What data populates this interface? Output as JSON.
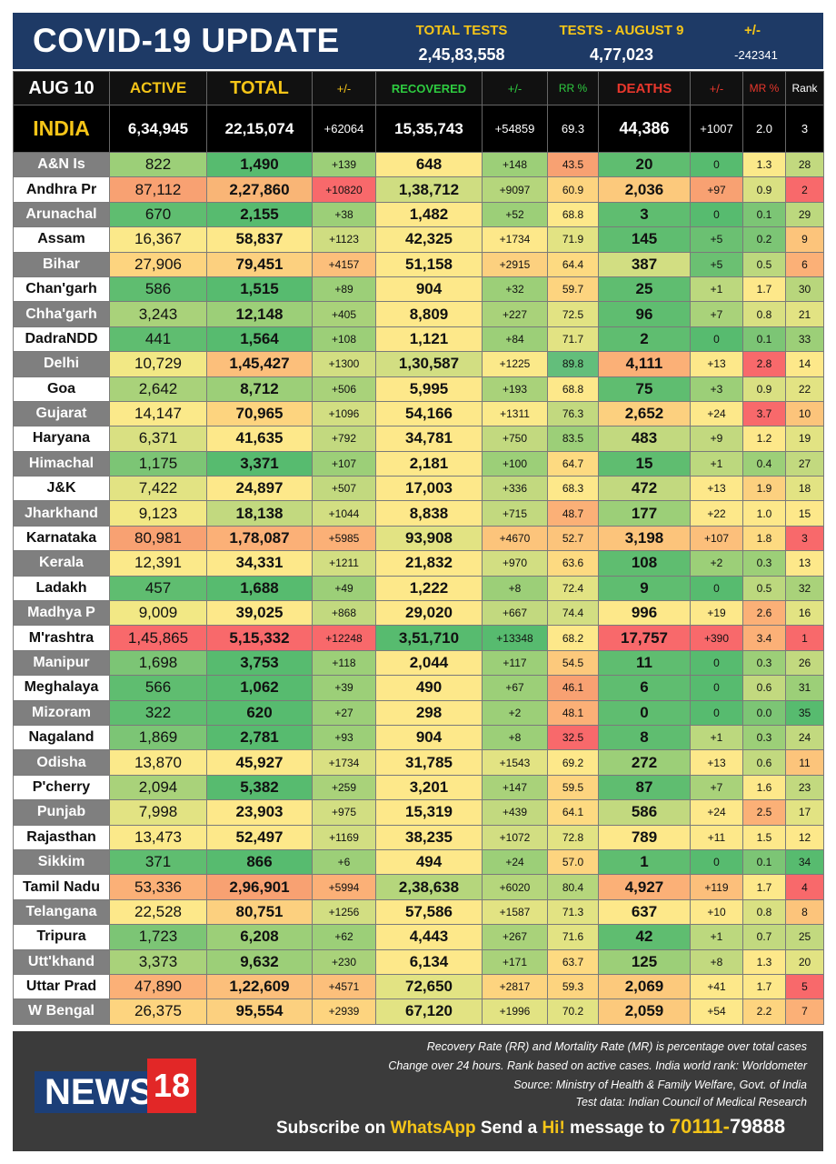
{
  "header": {
    "title": "COVID-19 UPDATE",
    "total_tests_label": "TOTAL TESTS",
    "total_tests_value": "2,45,83,558",
    "tests_day_label": "TESTS - AUGUST 9",
    "tests_day_value": "4,77,023",
    "change_label": "+/-",
    "change_value": "-242341"
  },
  "columns": {
    "date": "AUG 10",
    "active": "ACTIVE",
    "total": "TOTAL",
    "total_change": "+/-",
    "recovered": "RECOVERED",
    "recovered_change": "+/-",
    "rr": "RR %",
    "deaths": "DEATHS",
    "deaths_change": "+/-",
    "mr": "MR %",
    "rank": "Rank"
  },
  "india": {
    "name": "INDIA",
    "active": "6,34,945",
    "total": "22,15,074",
    "total_change": "+62064",
    "recovered": "15,35,743",
    "recovered_change": "+54859",
    "rr": "69.3",
    "deaths": "44,386",
    "deaths_change": "+1007",
    "mr": "2.0",
    "rank": "3"
  },
  "rows": [
    {
      "state": "A&N Is",
      "active": "822",
      "total": "1,490",
      "tc": "+139",
      "rec": "648",
      "rc": "+148",
      "rr": "43.5",
      "deaths": "20",
      "dc": "0",
      "mr": "1.3",
      "rank": "28",
      "bg": [
        "#9ccf78",
        "#57bb6f",
        "#9ccf78",
        "#fde88a",
        "#9ccf78",
        "#f8a172",
        "#5fbd70",
        "#57bb6f",
        "#fbe98a",
        "#c2d97f"
      ]
    },
    {
      "state": "Andhra Pr",
      "active": "87,112",
      "total": "2,27,860",
      "tc": "+10820",
      "rec": "1,38,712",
      "rc": "+9097",
      "rr": "60.9",
      "deaths": "2,036",
      "dc": "+97",
      "mr": "0.9",
      "rank": "2",
      "bg": [
        "#f8a172",
        "#f9b576",
        "#f8696b",
        "#cfdd81",
        "#b5d67c",
        "#fdd47f",
        "#fcc97c",
        "#f8a172",
        "#d9e082",
        "#f8696b"
      ]
    },
    {
      "state": "Arunachal",
      "active": "670",
      "total": "2,155",
      "tc": "+38",
      "rec": "1,482",
      "rc": "+52",
      "rr": "68.8",
      "deaths": "3",
      "dc": "0",
      "mr": "0.1",
      "rank": "29",
      "bg": [
        "#5fbd70",
        "#57bb6f",
        "#9ccf78",
        "#fde88a",
        "#9ccf78",
        "#fde88a",
        "#5fbd70",
        "#57bb6f",
        "#7cc575",
        "#bcd87e"
      ]
    },
    {
      "state": "Assam",
      "active": "16,367",
      "total": "58,837",
      "tc": "+1123",
      "rec": "42,325",
      "rc": "+1734",
      "rr": "71.9",
      "deaths": "145",
      "dc": "+5",
      "mr": "0.2",
      "rank": "9",
      "bg": [
        "#fbe98a",
        "#fde88a",
        "#cfdd81",
        "#fbe98a",
        "#fde88a",
        "#e2e383",
        "#5fbd70",
        "#6bc072",
        "#7cc575",
        "#fcc47b"
      ]
    },
    {
      "state": "Bihar",
      "active": "27,906",
      "total": "79,451",
      "tc": "+4157",
      "rec": "51,158",
      "rc": "+2915",
      "rr": "64.4",
      "deaths": "387",
      "dc": "+5",
      "mr": "0.5",
      "rank": "6",
      "bg": [
        "#fdd47f",
        "#fcd07f",
        "#fcbf7b",
        "#fde88a",
        "#fcd07f",
        "#fdda81",
        "#d2de82",
        "#6bc072",
        "#bcd87e",
        "#fbb077"
      ]
    },
    {
      "state": "Chan'garh",
      "active": "586",
      "total": "1,515",
      "tc": "+89",
      "rec": "904",
      "rc": "+32",
      "rr": "59.7",
      "deaths": "25",
      "dc": "+1",
      "mr": "1.7",
      "rank": "30",
      "bg": [
        "#5fbd70",
        "#57bb6f",
        "#9ccf78",
        "#fde88a",
        "#9ccf78",
        "#fdd47f",
        "#5fbd70",
        "#bcd87e",
        "#fde88a",
        "#b8d67c"
      ]
    },
    {
      "state": "Chha'garh",
      "active": "3,243",
      "total": "12,148",
      "tc": "+405",
      "rec": "8,809",
      "rc": "+227",
      "rr": "72.5",
      "deaths": "96",
      "dc": "+7",
      "mr": "0.8",
      "rank": "21",
      "bg": [
        "#a9d27a",
        "#9ccf78",
        "#a9d27a",
        "#fde88a",
        "#a9d27a",
        "#e2e383",
        "#5fbd70",
        "#a9d27a",
        "#d9e082",
        "#e2e383"
      ]
    },
    {
      "state": "DadraNDD",
      "active": "441",
      "total": "1,564",
      "tc": "+108",
      "rec": "1,121",
      "rc": "+84",
      "rr": "71.7",
      "deaths": "2",
      "dc": "0",
      "mr": "0.1",
      "rank": "33",
      "bg": [
        "#5fbd70",
        "#57bb6f",
        "#9ccf78",
        "#fde88a",
        "#9ccf78",
        "#e2e383",
        "#5fbd70",
        "#57bb6f",
        "#7cc575",
        "#9ccf78"
      ]
    },
    {
      "state": "Delhi",
      "active": "10,729",
      "total": "1,45,427",
      "tc": "+1300",
      "rec": "1,30,587",
      "rc": "+1225",
      "rr": "89.8",
      "deaths": "4,111",
      "dc": "+13",
      "mr": "2.8",
      "rank": "14",
      "bg": [
        "#f2e885",
        "#fcbf7b",
        "#d2de82",
        "#d2de82",
        "#fbe98a",
        "#63be7b",
        "#fbb077",
        "#fde88a",
        "#f8696b",
        "#fde88a"
      ]
    },
    {
      "state": "Goa",
      "active": "2,642",
      "total": "8,712",
      "tc": "+506",
      "rec": "5,995",
      "rc": "+193",
      "rr": "68.8",
      "deaths": "75",
      "dc": "+3",
      "mr": "0.9",
      "rank": "22",
      "bg": [
        "#a9d27a",
        "#9ccf78",
        "#a9d27a",
        "#fde88a",
        "#a9d27a",
        "#fde88a",
        "#5fbd70",
        "#9ccf78",
        "#d9e082",
        "#e2e383"
      ]
    },
    {
      "state": "Gujarat",
      "active": "14,147",
      "total": "70,965",
      "tc": "+1096",
      "rec": "54,166",
      "rc": "+1311",
      "rr": "76.3",
      "deaths": "2,652",
      "dc": "+24",
      "mr": "3.7",
      "rank": "10",
      "bg": [
        "#fbe98a",
        "#fdd47f",
        "#d2de82",
        "#fde88a",
        "#fbe98a",
        "#c2d97f",
        "#fcd07f",
        "#fde88a",
        "#f8696b",
        "#fcc47b"
      ]
    },
    {
      "state": "Haryana",
      "active": "6,371",
      "total": "41,635",
      "tc": "+792",
      "rec": "34,781",
      "rc": "+750",
      "rr": "83.5",
      "deaths": "483",
      "dc": "+9",
      "mr": "1.2",
      "rank": "19",
      "bg": [
        "#d9e082",
        "#fde88a",
        "#c2d97f",
        "#fde88a",
        "#c2d97f",
        "#9ccf78",
        "#c2d97f",
        "#c2d97f",
        "#fde88a",
        "#e2e383"
      ]
    },
    {
      "state": "Himachal",
      "active": "1,175",
      "total": "3,371",
      "tc": "+107",
      "rec": "2,181",
      "rc": "+100",
      "rr": "64.7",
      "deaths": "15",
      "dc": "+1",
      "mr": "0.4",
      "rank": "27",
      "bg": [
        "#7cc575",
        "#57bb6f",
        "#9ccf78",
        "#fde88a",
        "#9ccf78",
        "#fdda81",
        "#5fbd70",
        "#bcd87e",
        "#9ccf78",
        "#c2d97f"
      ]
    },
    {
      "state": "J&K",
      "active": "7,422",
      "total": "24,897",
      "tc": "+507",
      "rec": "17,003",
      "rc": "+336",
      "rr": "68.3",
      "deaths": "472",
      "dc": "+13",
      "mr": "1.9",
      "rank": "18",
      "bg": [
        "#e2e383",
        "#fde88a",
        "#c2d97f",
        "#fde88a",
        "#c2d97f",
        "#fde88a",
        "#c2d97f",
        "#fde88a",
        "#fcd07f",
        "#e2e383"
      ]
    },
    {
      "state": "Jharkhand",
      "active": "9,123",
      "total": "18,138",
      "tc": "+1044",
      "rec": "8,838",
      "rc": "+715",
      "rr": "48.7",
      "deaths": "177",
      "dc": "+22",
      "mr": "1.0",
      "rank": "15",
      "bg": [
        "#f2e885",
        "#c2d97f",
        "#d2de82",
        "#fde88a",
        "#c2d97f",
        "#fbb077",
        "#9ccf78",
        "#fde88a",
        "#fde88a",
        "#fde88a"
      ]
    },
    {
      "state": "Karnataka",
      "active": "80,981",
      "total": "1,78,087",
      "tc": "+5985",
      "rec": "93,908",
      "rc": "+4670",
      "rr": "52.7",
      "deaths": "3,198",
      "dc": "+107",
      "mr": "1.8",
      "rank": "3",
      "bg": [
        "#f8a172",
        "#fbb077",
        "#fbb077",
        "#e2e383",
        "#fcc47b",
        "#fcc47b",
        "#fcc47b",
        "#fcbf7b",
        "#fdda81",
        "#f8696b"
      ]
    },
    {
      "state": "Kerala",
      "active": "12,391",
      "total": "34,331",
      "tc": "+1211",
      "rec": "21,832",
      "rc": "+970",
      "rr": "63.6",
      "deaths": "108",
      "dc": "+2",
      "mr": "0.3",
      "rank": "13",
      "bg": [
        "#fbe98a",
        "#fde88a",
        "#d2de82",
        "#fde88a",
        "#d2de82",
        "#fdda81",
        "#5fbd70",
        "#9ccf78",
        "#9ccf78",
        "#fde88a"
      ]
    },
    {
      "state": "Ladakh",
      "active": "457",
      "total": "1,688",
      "tc": "+49",
      "rec": "1,222",
      "rc": "+8",
      "rr": "72.4",
      "deaths": "9",
      "dc": "0",
      "mr": "0.5",
      "rank": "32",
      "bg": [
        "#5fbd70",
        "#57bb6f",
        "#9ccf78",
        "#fde88a",
        "#9ccf78",
        "#e2e383",
        "#5fbd70",
        "#57bb6f",
        "#bcd87e",
        "#a9d27a"
      ]
    },
    {
      "state": "Madhya P",
      "active": "9,009",
      "total": "39,025",
      "tc": "+868",
      "rec": "29,020",
      "rc": "+667",
      "rr": "74.4",
      "deaths": "996",
      "dc": "+19",
      "mr": "2.6",
      "rank": "16",
      "bg": [
        "#f2e885",
        "#fde88a",
        "#c2d97f",
        "#fde88a",
        "#c2d97f",
        "#d2de82",
        "#fde88a",
        "#fde88a",
        "#fbb077",
        "#e2e383"
      ]
    },
    {
      "state": "M'rashtra",
      "active": "1,45,865",
      "total": "5,15,332",
      "tc": "+12248",
      "rec": "3,51,710",
      "rc": "+13348",
      "rr": "68.2",
      "deaths": "17,757",
      "dc": "+390",
      "mr": "3.4",
      "rank": "1",
      "bg": [
        "#f8696b",
        "#f8696b",
        "#f8696b",
        "#57bb6f",
        "#57bb6f",
        "#fde88a",
        "#f8696b",
        "#f8696b",
        "#fbb077",
        "#f8696b"
      ]
    },
    {
      "state": "Manipur",
      "active": "1,698",
      "total": "3,753",
      "tc": "+118",
      "rec": "2,044",
      "rc": "+117",
      "rr": "54.5",
      "deaths": "11",
      "dc": "0",
      "mr": "0.3",
      "rank": "26",
      "bg": [
        "#7cc575",
        "#57bb6f",
        "#9ccf78",
        "#fde88a",
        "#9ccf78",
        "#fcc97c",
        "#5fbd70",
        "#57bb6f",
        "#9ccf78",
        "#c2d97f"
      ]
    },
    {
      "state": "Meghalaya",
      "active": "566",
      "total": "1,062",
      "tc": "+39",
      "rec": "490",
      "rc": "+67",
      "rr": "46.1",
      "deaths": "6",
      "dc": "0",
      "mr": "0.6",
      "rank": "31",
      "bg": [
        "#5fbd70",
        "#57bb6f",
        "#9ccf78",
        "#fde88a",
        "#9ccf78",
        "#f8a172",
        "#5fbd70",
        "#57bb6f",
        "#c2d97f",
        "#9ccf78"
      ]
    },
    {
      "state": "Mizoram",
      "active": "322",
      "total": "620",
      "tc": "+27",
      "rec": "298",
      "rc": "+2",
      "rr": "48.1",
      "deaths": "0",
      "dc": "0",
      "mr": "0.0",
      "rank": "35",
      "bg": [
        "#5fbd70",
        "#57bb6f",
        "#9ccf78",
        "#fde88a",
        "#9ccf78",
        "#fbb077",
        "#5fbd70",
        "#57bb6f",
        "#7cc575",
        "#57bb6f"
      ]
    },
    {
      "state": "Nagaland",
      "active": "1,869",
      "total": "2,781",
      "tc": "+93",
      "rec": "904",
      "rc": "+8",
      "rr": "32.5",
      "deaths": "8",
      "dc": "+1",
      "mr": "0.3",
      "rank": "24",
      "bg": [
        "#7cc575",
        "#57bb6f",
        "#9ccf78",
        "#fde88a",
        "#9ccf78",
        "#f8696b",
        "#5fbd70",
        "#bcd87e",
        "#9ccf78",
        "#c2d97f"
      ]
    },
    {
      "state": "Odisha",
      "active": "13,870",
      "total": "45,927",
      "tc": "+1734",
      "rec": "31,785",
      "rc": "+1543",
      "rr": "69.2",
      "deaths": "272",
      "dc": "+13",
      "mr": "0.6",
      "rank": "11",
      "bg": [
        "#fbe98a",
        "#fde88a",
        "#d9e082",
        "#fde88a",
        "#e2e383",
        "#fde88a",
        "#9ccf78",
        "#fde88a",
        "#c2d97f",
        "#fcc47b"
      ]
    },
    {
      "state": "P'cherry",
      "active": "2,094",
      "total": "5,382",
      "tc": "+259",
      "rec": "3,201",
      "rc": "+147",
      "rr": "59.5",
      "deaths": "87",
      "dc": "+7",
      "mr": "1.6",
      "rank": "23",
      "bg": [
        "#a9d27a",
        "#57bb6f",
        "#a9d27a",
        "#fde88a",
        "#a9d27a",
        "#fdd47f",
        "#5fbd70",
        "#a9d27a",
        "#fde88a",
        "#c2d97f"
      ]
    },
    {
      "state": "Punjab",
      "active": "7,998",
      "total": "23,903",
      "tc": "+975",
      "rec": "15,319",
      "rc": "+439",
      "rr": "64.1",
      "deaths": "586",
      "dc": "+24",
      "mr": "2.5",
      "rank": "17",
      "bg": [
        "#e2e383",
        "#fde88a",
        "#d2de82",
        "#fde88a",
        "#c2d97f",
        "#fdda81",
        "#c2d97f",
        "#fde88a",
        "#fbb077",
        "#e2e383"
      ]
    },
    {
      "state": "Rajasthan",
      "active": "13,473",
      "total": "52,497",
      "tc": "+1169",
      "rec": "38,235",
      "rc": "+1072",
      "rr": "72.8",
      "deaths": "789",
      "dc": "+11",
      "mr": "1.5",
      "rank": "12",
      "bg": [
        "#fbe98a",
        "#fde88a",
        "#d2de82",
        "#fde88a",
        "#d2de82",
        "#e2e383",
        "#fde88a",
        "#fde88a",
        "#fde88a",
        "#fde88a"
      ]
    },
    {
      "state": "Sikkim",
      "active": "371",
      "total": "866",
      "tc": "+6",
      "rec": "494",
      "rc": "+24",
      "rr": "57.0",
      "deaths": "1",
      "dc": "0",
      "mr": "0.1",
      "rank": "34",
      "bg": [
        "#5fbd70",
        "#57bb6f",
        "#9ccf78",
        "#fde88a",
        "#9ccf78",
        "#fdd47f",
        "#5fbd70",
        "#57bb6f",
        "#7cc575",
        "#57bb6f"
      ]
    },
    {
      "state": "Tamil Nadu",
      "active": "53,336",
      "total": "2,96,901",
      "tc": "+5994",
      "rec": "2,38,638",
      "rc": "+6020",
      "rr": "80.4",
      "deaths": "4,927",
      "dc": "+119",
      "mr": "1.7",
      "rank": "4",
      "bg": [
        "#fbb077",
        "#f8a172",
        "#fbb077",
        "#b5d67c",
        "#b5d67c",
        "#b5d67c",
        "#fbb077",
        "#fcbf7b",
        "#fde88a",
        "#f8696b"
      ]
    },
    {
      "state": "Telangana",
      "active": "22,528",
      "total": "80,751",
      "tc": "+1256",
      "rec": "57,586",
      "rc": "+1587",
      "rr": "71.3",
      "deaths": "637",
      "dc": "+10",
      "mr": "0.8",
      "rank": "8",
      "bg": [
        "#fde88a",
        "#fcd07f",
        "#d2de82",
        "#fde88a",
        "#e2e383",
        "#e2e383",
        "#fde88a",
        "#fde88a",
        "#d9e082",
        "#fcc47b"
      ]
    },
    {
      "state": "Tripura",
      "active": "1,723",
      "total": "6,208",
      "tc": "+62",
      "rec": "4,443",
      "rc": "+267",
      "rr": "71.6",
      "deaths": "42",
      "dc": "+1",
      "mr": "0.7",
      "rank": "25",
      "bg": [
        "#7cc575",
        "#9ccf78",
        "#9ccf78",
        "#fde88a",
        "#a9d27a",
        "#e2e383",
        "#5fbd70",
        "#bcd87e",
        "#c2d97f",
        "#c2d97f"
      ]
    },
    {
      "state": "Utt'khand",
      "active": "3,373",
      "total": "9,632",
      "tc": "+230",
      "rec": "6,134",
      "rc": "+171",
      "rr": "63.7",
      "deaths": "125",
      "dc": "+8",
      "mr": "1.3",
      "rank": "20",
      "bg": [
        "#a9d27a",
        "#9ccf78",
        "#a9d27a",
        "#fde88a",
        "#a9d27a",
        "#fdda81",
        "#9ccf78",
        "#c2d97f",
        "#fde88a",
        "#e2e383"
      ]
    },
    {
      "state": "Uttar Prad",
      "active": "47,890",
      "total": "1,22,609",
      "tc": "+4571",
      "rec": "72,650",
      "rc": "+2817",
      "rr": "59.3",
      "deaths": "2,069",
      "dc": "+41",
      "mr": "1.7",
      "rank": "5",
      "bg": [
        "#fbb077",
        "#fcbf7b",
        "#fcbf7b",
        "#e2e383",
        "#fdd47f",
        "#fdd47f",
        "#fcc97c",
        "#fde88a",
        "#fde88a",
        "#f8696b"
      ]
    },
    {
      "state": "W Bengal",
      "active": "26,375",
      "total": "95,554",
      "tc": "+2939",
      "rec": "67,120",
      "rc": "+1996",
      "rr": "70.2",
      "deaths": "2,059",
      "dc": "+54",
      "mr": "2.2",
      "rank": "7",
      "bg": [
        "#fdd47f",
        "#fcd07f",
        "#fdd47f",
        "#e2e383",
        "#e2e383",
        "#e2e383",
        "#fcc97c",
        "#fde88a",
        "#fdd47f",
        "#fbb077"
      ]
    }
  ],
  "footer": {
    "note1": "Recovery Rate (RR) and Mortality Rate (MR) is percentage over total cases",
    "note2": "Change over 24 hours. Rank based on active cases. India world rank: Worldometer",
    "note3": "Source: Ministry of Health & Family Welfare, Govt. of India",
    "note4": "Test data: Indian Council of Medical Research",
    "logo_news": "NEWS",
    "logo_18": "18",
    "subscribe_pre": "Subscribe on ",
    "subscribe_whatsapp": "WhatsApp",
    "subscribe_mid": " Send a ",
    "subscribe_hi": "Hi!",
    "subscribe_post": " message to ",
    "phone_a": "70111-",
    "phone_b": "79888"
  },
  "colors": {
    "header_bg": "#1e3a66",
    "accent_yellow": "#f5c518",
    "green_label": "#2ecc40",
    "red_label": "#e8372c",
    "logo_red": "#e22727",
    "logo_blue": "#1c3f78"
  }
}
